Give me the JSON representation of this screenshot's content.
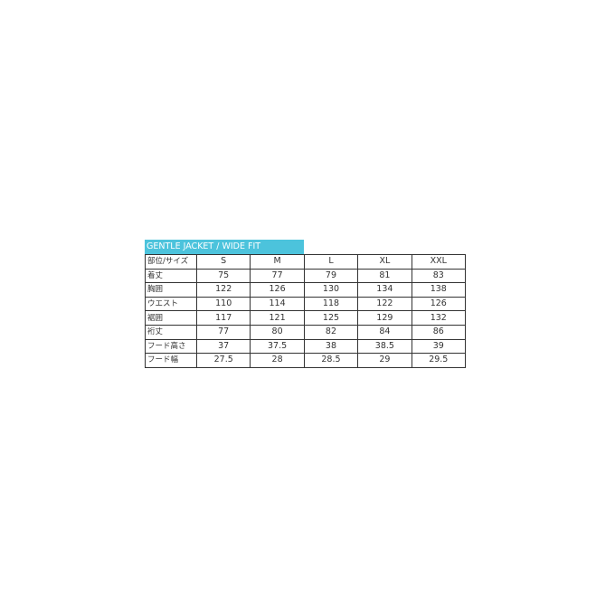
{
  "title": "GENTLE JACKET / WIDE FIT",
  "header": [
    "部位/サイズ",
    "S",
    "M",
    "L",
    "XL",
    "XXL"
  ],
  "rows": [
    [
      "着丈",
      "75",
      "77",
      "79",
      "81",
      "83"
    ],
    [
      "胸囲",
      "122",
      "126",
      "130",
      "134",
      "138"
    ],
    [
      "ウエスト",
      "110",
      "114",
      "118",
      "122",
      "126"
    ],
    [
      "裾囲",
      "117",
      "121",
      "125",
      "129",
      "132"
    ],
    [
      "裄丈",
      "77",
      "80",
      "82",
      "84",
      "86"
    ],
    [
      "フード高さ",
      "37",
      "37.5",
      "38",
      "38.5",
      "39"
    ],
    [
      "フード幅",
      "27.5",
      "28",
      "28.5",
      "29",
      "29.5"
    ]
  ],
  "colors": {
    "title_bg": "#4cc3dc"
  }
}
